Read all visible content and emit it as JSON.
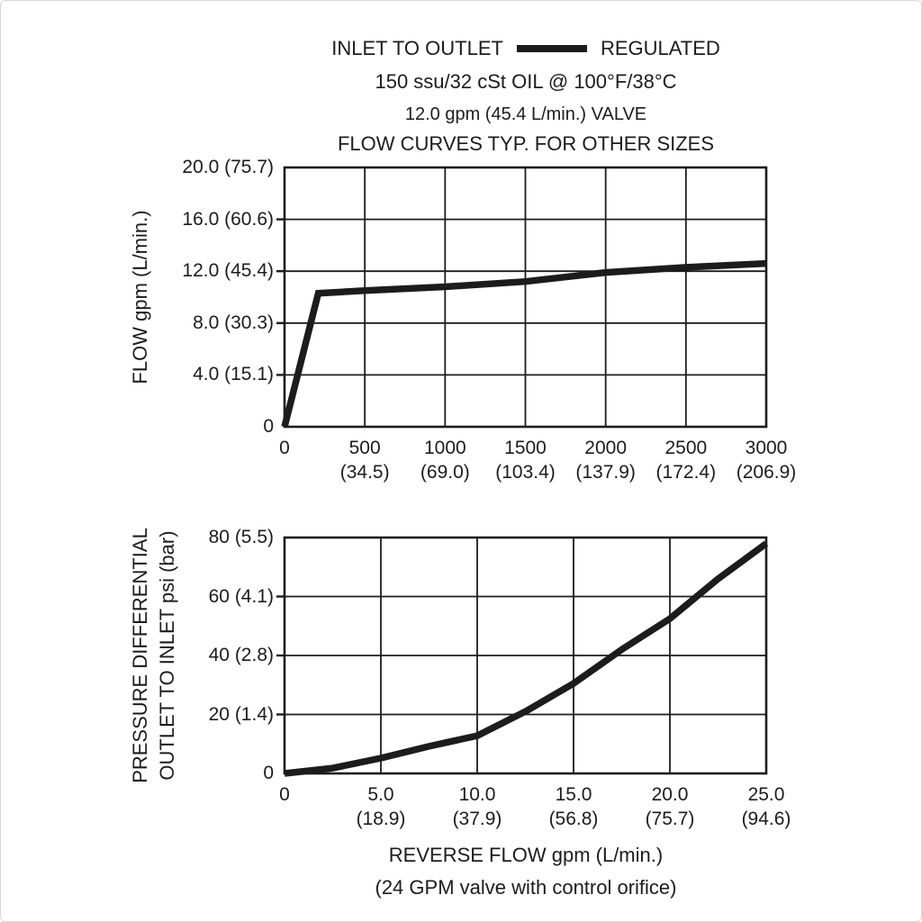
{
  "colors": {
    "ink": "#1c1c1c",
    "background": "#ffffff"
  },
  "header": {
    "legend_series_label": "INLET TO OUTLET",
    "legend_value_label": "REGULATED",
    "oil_spec": "150 ssu/32 cSt OIL @ 100°F/38°C",
    "valve_spec": "12.0 gpm (45.4 L/min.) VALVE",
    "note": "FLOW CURVES TYP. FOR OTHER SIZES"
  },
  "chart_data": [
    {
      "type": "line",
      "name": "regulated-flow-vs-pressure",
      "title": "",
      "ylabel": "FLOW gpm (L/min.)",
      "xlabel": "",
      "xlim": [
        0,
        3000
      ],
      "ylim": [
        0,
        20
      ],
      "grid": true,
      "xticks": [
        {
          "v": 0,
          "label": "0",
          "sub": ""
        },
        {
          "v": 500,
          "label": "500",
          "sub": "(34.5)"
        },
        {
          "v": 1000,
          "label": "1000",
          "sub": "(69.0)"
        },
        {
          "v": 1500,
          "label": "1500",
          "sub": "(103.4)"
        },
        {
          "v": 2000,
          "label": "2000",
          "sub": "(137.9)"
        },
        {
          "v": 2500,
          "label": "2500",
          "sub": "(172.4)"
        },
        {
          "v": 3000,
          "label": "3000",
          "sub": "(206.9)"
        }
      ],
      "yticks": [
        {
          "v": 20,
          "label": "20.0 (75.7)"
        },
        {
          "v": 16,
          "label": "16.0 (60.6)"
        },
        {
          "v": 12,
          "label": "12.0 (45.4)"
        },
        {
          "v": 8,
          "label": "8.0 (30.3)"
        },
        {
          "v": 4,
          "label": "4.0 (15.1)"
        },
        {
          "v": 0,
          "label": "0"
        }
      ],
      "series": [
        {
          "name": "INLET TO OUTLET - REGULATED",
          "points": [
            [
              0,
              0
            ],
            [
              210,
              10.3
            ],
            [
              500,
              10.5
            ],
            [
              1000,
              10.8
            ],
            [
              1500,
              11.2
            ],
            [
              2000,
              11.9
            ],
            [
              2500,
              12.3
            ],
            [
              3000,
              12.6
            ]
          ]
        }
      ]
    },
    {
      "type": "line",
      "name": "pressure-differential-vs-reverse-flow",
      "title": "",
      "ylabel_lines": [
        "PRESSURE DIFFERENTIAL",
        "OUTLET TO INLET psi (bar)"
      ],
      "xlabel": "REVERSE FLOW gpm (L/min.)",
      "xlabel_note": "(24 GPM valve with control orifice)",
      "xlim": [
        0,
        25
      ],
      "ylim": [
        0,
        80
      ],
      "grid": true,
      "xticks": [
        {
          "v": 0,
          "label": "0",
          "sub": ""
        },
        {
          "v": 5,
          "label": "5.0",
          "sub": "(18.9)"
        },
        {
          "v": 10,
          "label": "10.0",
          "sub": "(37.9)"
        },
        {
          "v": 15,
          "label": "15.0",
          "sub": "(56.8)"
        },
        {
          "v": 20,
          "label": "20.0",
          "sub": "(75.7)"
        },
        {
          "v": 25,
          "label": "25.0",
          "sub": "(94.6)"
        }
      ],
      "yticks": [
        {
          "v": 80,
          "label": "80 (5.5)"
        },
        {
          "v": 60,
          "label": "60 (4.1)"
        },
        {
          "v": 40,
          "label": "40 (2.8)"
        },
        {
          "v": 20,
          "label": "20 (1.4)"
        },
        {
          "v": 0,
          "label": "0"
        }
      ],
      "series": [
        {
          "name": "reverse flow pressure differential",
          "points": [
            [
              0,
              0
            ],
            [
              2.5,
              1.8
            ],
            [
              5,
              5.2
            ],
            [
              7.5,
              9.2
            ],
            [
              10,
              12.8
            ],
            [
              12.5,
              21
            ],
            [
              15,
              30.5
            ],
            [
              17.5,
              42
            ],
            [
              20,
              52.5
            ],
            [
              22.5,
              66
            ],
            [
              25,
              78
            ]
          ]
        }
      ]
    }
  ]
}
